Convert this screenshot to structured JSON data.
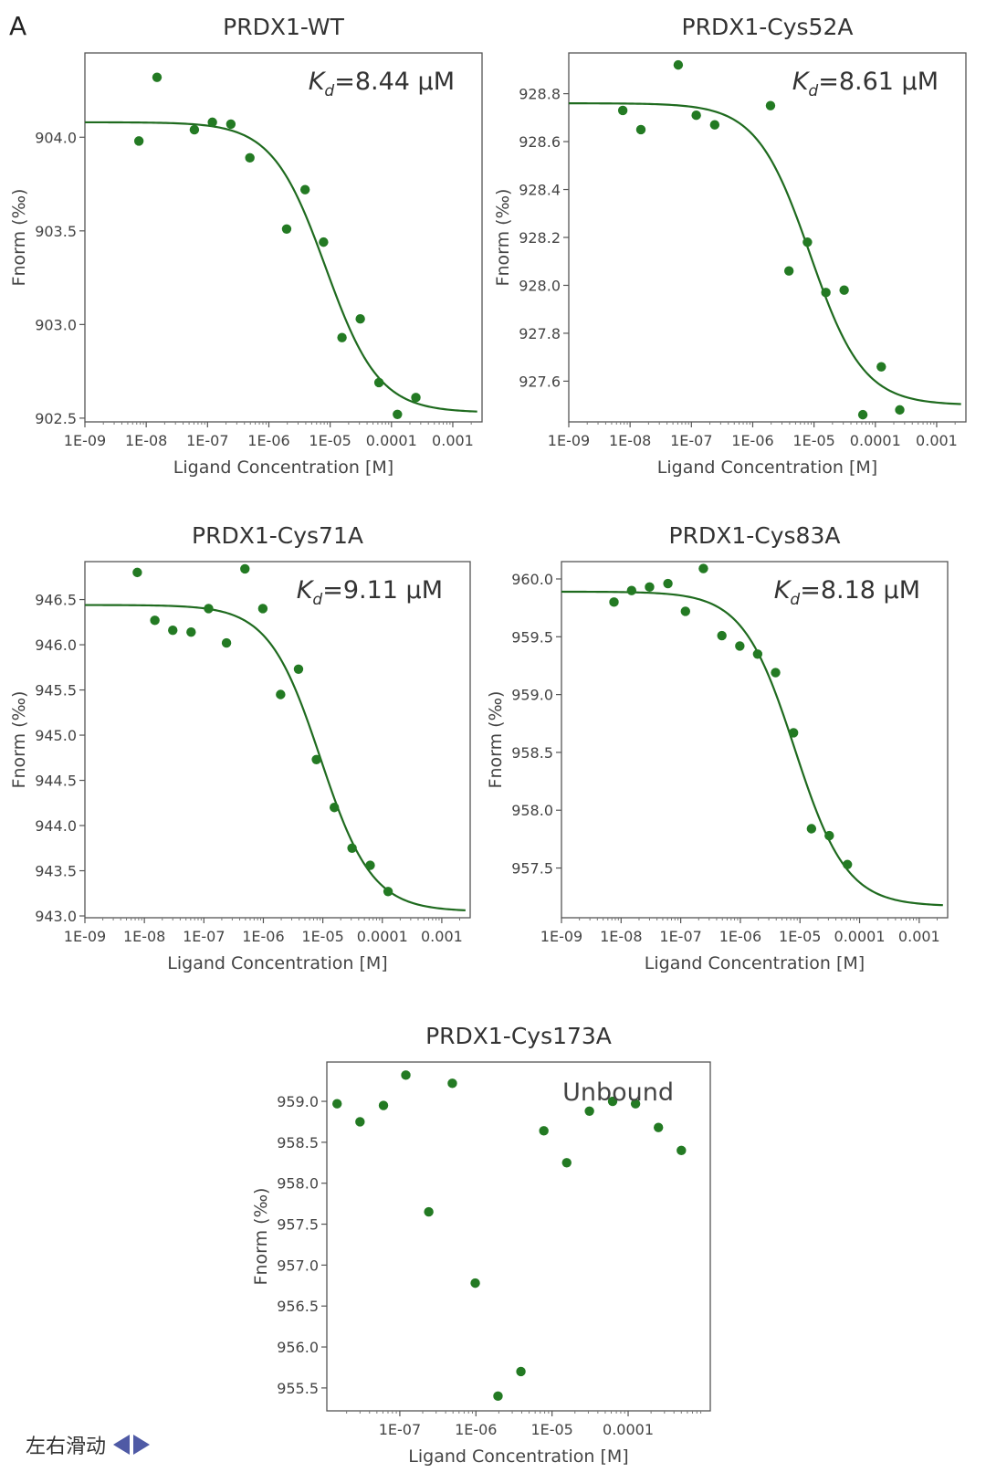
{
  "figure": {
    "panel_label": "A"
  },
  "footer": {
    "swipe_text": "左右滑动"
  },
  "chart_data": [
    {
      "type": "scatter",
      "title": "PRDX1-WT",
      "annotation": {
        "prefix": "K",
        "subscript": "d",
        "suffix": "=8.44 μM"
      },
      "xlabel": "Ligand Concentration [M]",
      "ylabel": "Fnorm (‰)",
      "xscale": "log",
      "xlim": [
        1e-09,
        0.003
      ],
      "ylim": [
        902.48,
        904.45
      ],
      "xticks": [
        1e-09,
        1e-08,
        1e-07,
        1e-06,
        1e-05,
        0.0001,
        0.001
      ],
      "xtick_labels": [
        "1E-09",
        "1E-08",
        "1E-07",
        "1E-06",
        "1E-05",
        "0.0001",
        "0.001"
      ],
      "yticks": [
        902.5,
        903.0,
        903.5,
        904.0
      ],
      "ytick_labels": [
        "902.5",
        "903.0",
        "903.5",
        "904.0"
      ],
      "points": [
        {
          "x": 7.6e-09,
          "y": 903.98
        },
        {
          "x": 1.5e-08,
          "y": 904.32
        },
        {
          "x": 6.1e-08,
          "y": 904.04
        },
        {
          "x": 1.2e-07,
          "y": 904.08
        },
        {
          "x": 2.4e-07,
          "y": 904.07
        },
        {
          "x": 4.9e-07,
          "y": 903.89
        },
        {
          "x": 1.95e-06,
          "y": 903.51
        },
        {
          "x": 3.9e-06,
          "y": 903.72
        },
        {
          "x": 7.8e-06,
          "y": 903.44
        },
        {
          "x": 1.56e-05,
          "y": 902.93
        },
        {
          "x": 3.1e-05,
          "y": 903.03
        },
        {
          "x": 6.25e-05,
          "y": 902.69
        },
        {
          "x": 0.000125,
          "y": 902.52
        },
        {
          "x": 0.00025,
          "y": 902.61
        }
      ],
      "fit": {
        "kd": 8.44e-06,
        "top": 904.08,
        "bottom": 902.53,
        "x_end": 0.0025
      }
    },
    {
      "type": "scatter",
      "title": "PRDX1-Cys52A",
      "annotation": {
        "prefix": "K",
        "subscript": "d",
        "suffix": "=8.61 μM"
      },
      "xlabel": "Ligand Concentration [M]",
      "ylabel": "Fnorm (‰)",
      "xscale": "log",
      "xlim": [
        1e-09,
        0.003
      ],
      "ylim": [
        927.43,
        928.97
      ],
      "xticks": [
        1e-09,
        1e-08,
        1e-07,
        1e-06,
        1e-05,
        0.0001,
        0.001
      ],
      "xtick_labels": [
        "1E-09",
        "1E-08",
        "1E-07",
        "1E-06",
        "1E-05",
        "0.0001",
        "0.001"
      ],
      "yticks": [
        927.6,
        927.8,
        928.0,
        928.2,
        928.4,
        928.6,
        928.8
      ],
      "ytick_labels": [
        "927.6",
        "927.8",
        "928.0",
        "928.2",
        "928.4",
        "928.6",
        "928.8"
      ],
      "points": [
        {
          "x": 7.6e-09,
          "y": 928.73
        },
        {
          "x": 1.5e-08,
          "y": 928.65
        },
        {
          "x": 6.1e-08,
          "y": 928.92
        },
        {
          "x": 1.2e-07,
          "y": 928.71
        },
        {
          "x": 2.4e-07,
          "y": 928.67
        },
        {
          "x": 1.95e-06,
          "y": 928.75
        },
        {
          "x": 3.9e-06,
          "y": 928.06
        },
        {
          "x": 7.8e-06,
          "y": 928.18
        },
        {
          "x": 1.56e-05,
          "y": 927.97
        },
        {
          "x": 3.1e-05,
          "y": 927.98
        },
        {
          "x": 6.25e-05,
          "y": 927.46
        },
        {
          "x": 0.000125,
          "y": 927.66
        },
        {
          "x": 0.00025,
          "y": 927.48
        }
      ],
      "fit": {
        "kd": 8.61e-06,
        "top": 928.76,
        "bottom": 927.5,
        "x_end": 0.0025
      }
    },
    {
      "type": "scatter",
      "title": "PRDX1-Cys71A",
      "annotation": {
        "prefix": "K",
        "subscript": "d",
        "suffix": "=9.11 μM"
      },
      "xlabel": "Ligand Concentration [M]",
      "ylabel": "Fnorm (‰)",
      "xscale": "log",
      "xlim": [
        1e-09,
        0.003
      ],
      "ylim": [
        942.98,
        946.92
      ],
      "xticks": [
        1e-09,
        1e-08,
        1e-07,
        1e-06,
        1e-05,
        0.0001,
        0.001
      ],
      "xtick_labels": [
        "1E-09",
        "1E-08",
        "1E-07",
        "1E-06",
        "1E-05",
        "0.0001",
        "0.001"
      ],
      "yticks": [
        943.0,
        943.5,
        944.0,
        944.5,
        945.0,
        945.5,
        946.0,
        946.5
      ],
      "ytick_labels": [
        "943.0",
        "943.5",
        "944.0",
        "944.5",
        "945.0",
        "945.5",
        "946.0",
        "946.5"
      ],
      "points": [
        {
          "x": 7.6e-09,
          "y": 946.8
        },
        {
          "x": 1.5e-08,
          "y": 946.27
        },
        {
          "x": 3e-08,
          "y": 946.16
        },
        {
          "x": 6.1e-08,
          "y": 946.14
        },
        {
          "x": 1.2e-07,
          "y": 946.4
        },
        {
          "x": 2.4e-07,
          "y": 946.02
        },
        {
          "x": 4.9e-07,
          "y": 946.84
        },
        {
          "x": 9.8e-07,
          "y": 946.4
        },
        {
          "x": 1.95e-06,
          "y": 945.45
        },
        {
          "x": 3.9e-06,
          "y": 945.73
        },
        {
          "x": 7.8e-06,
          "y": 944.73
        },
        {
          "x": 1.56e-05,
          "y": 944.2
        },
        {
          "x": 3.1e-05,
          "y": 943.75
        },
        {
          "x": 6.25e-05,
          "y": 943.56
        },
        {
          "x": 0.000125,
          "y": 943.27
        }
      ],
      "fit": {
        "kd": 9.11e-06,
        "top": 946.44,
        "bottom": 943.05,
        "x_end": 0.0025
      }
    },
    {
      "type": "scatter",
      "title": "PRDX1-Cys83A",
      "annotation": {
        "prefix": "K",
        "subscript": "d",
        "suffix": "=8.18 μM"
      },
      "xlabel": "Ligand Concentration [M]",
      "ylabel": "Fnorm (‰)",
      "xscale": "log",
      "xlim": [
        1e-09,
        0.003
      ],
      "ylim": [
        957.07,
        960.15
      ],
      "xticks": [
        1e-09,
        1e-08,
        1e-07,
        1e-06,
        1e-05,
        0.0001,
        0.001
      ],
      "xtick_labels": [
        "1E-09",
        "1E-08",
        "1E-07",
        "1E-06",
        "1E-05",
        "0.0001",
        "0.001"
      ],
      "yticks": [
        957.5,
        958.0,
        958.5,
        959.0,
        959.5,
        960.0
      ],
      "ytick_labels": [
        "957.5",
        "958.0",
        "958.5",
        "959.0",
        "959.5",
        "960.0"
      ],
      "points": [
        {
          "x": 7.6e-09,
          "y": 959.8
        },
        {
          "x": 1.5e-08,
          "y": 959.9
        },
        {
          "x": 3e-08,
          "y": 959.93
        },
        {
          "x": 6.1e-08,
          "y": 959.96
        },
        {
          "x": 1.2e-07,
          "y": 959.72
        },
        {
          "x": 2.4e-07,
          "y": 960.09
        },
        {
          "x": 4.9e-07,
          "y": 959.51
        },
        {
          "x": 9.8e-07,
          "y": 959.42
        },
        {
          "x": 1.95e-06,
          "y": 959.35
        },
        {
          "x": 3.9e-06,
          "y": 959.19
        },
        {
          "x": 7.8e-06,
          "y": 958.67
        },
        {
          "x": 1.56e-05,
          "y": 957.84
        },
        {
          "x": 3.1e-05,
          "y": 957.78
        },
        {
          "x": 6.25e-05,
          "y": 957.53
        }
      ],
      "fit": {
        "kd": 8.18e-06,
        "top": 959.89,
        "bottom": 957.17,
        "x_end": 0.0025
      }
    },
    {
      "type": "scatter",
      "title": "PRDX1-Cys173A",
      "annotation": {
        "text": "Unbound"
      },
      "xlabel": "Ligand Concentration [M]",
      "ylabel": "Fnorm (‰)",
      "xscale": "log",
      "xlim": [
        1.1e-08,
        0.0012
      ],
      "ylim": [
        955.22,
        959.48
      ],
      "xticks": [
        1e-07,
        1e-06,
        1e-05,
        0.0001
      ],
      "xtick_labels": [
        "1E-07",
        "1E-06",
        "1E-05",
        "0.0001"
      ],
      "yticks": [
        955.5,
        956.0,
        956.5,
        957.0,
        957.5,
        958.0,
        958.5,
        959.0
      ],
      "ytick_labels": [
        "955.5",
        "956.0",
        "956.5",
        "957.0",
        "957.5",
        "958.0",
        "958.5",
        "959.0"
      ],
      "points": [
        {
          "x": 1.5e-08,
          "y": 958.97
        },
        {
          "x": 3e-08,
          "y": 958.75
        },
        {
          "x": 6.1e-08,
          "y": 958.95
        },
        {
          "x": 1.2e-07,
          "y": 959.32
        },
        {
          "x": 2.4e-07,
          "y": 957.65
        },
        {
          "x": 4.9e-07,
          "y": 959.22
        },
        {
          "x": 9.8e-07,
          "y": 956.78
        },
        {
          "x": 1.95e-06,
          "y": 955.4
        },
        {
          "x": 3.9e-06,
          "y": 955.7
        },
        {
          "x": 7.8e-06,
          "y": 958.64
        },
        {
          "x": 1.56e-05,
          "y": 958.25
        },
        {
          "x": 3.1e-05,
          "y": 958.88
        },
        {
          "x": 6.25e-05,
          "y": 959.0
        },
        {
          "x": 0.000125,
          "y": 958.97
        },
        {
          "x": 0.00025,
          "y": 958.68
        },
        {
          "x": 0.0005,
          "y": 958.4
        }
      ],
      "fit": null
    }
  ]
}
